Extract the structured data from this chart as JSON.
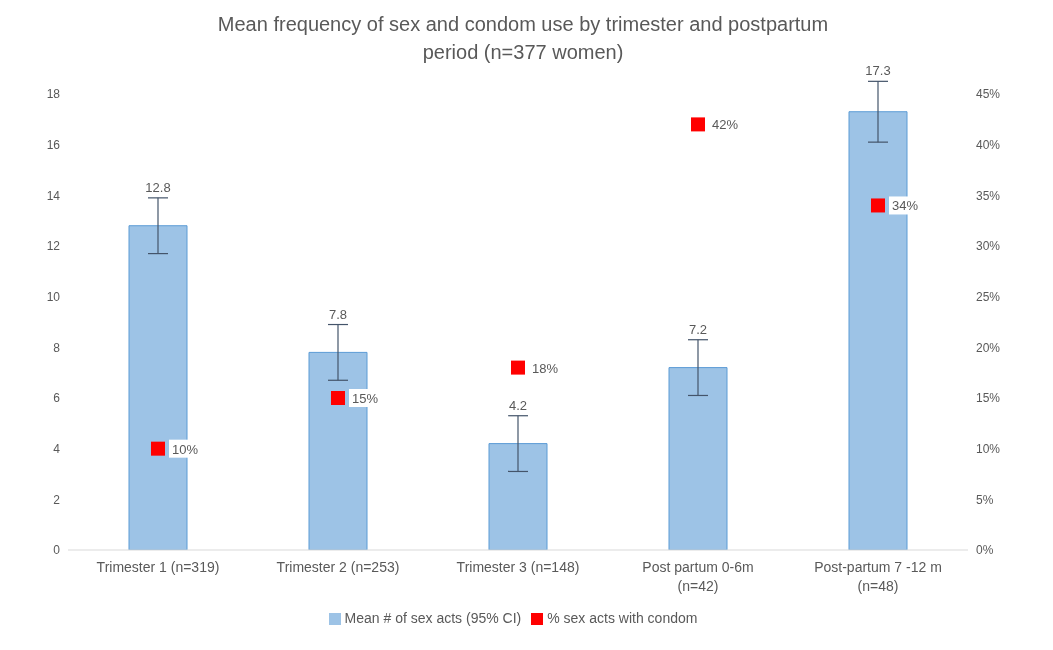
{
  "chart_data": {
    "type": "bar",
    "title": "Mean frequency of sex and condom use by trimester and postpartum period (n=377 women)",
    "categories": [
      "Trimester 1 (n=319)",
      "Trimester 2 (n=253)",
      "Trimester 3 (n=148)",
      "Post partum 0-6m (n=42)",
      "Post-partum 7 -12 m (n=48)"
    ],
    "series": [
      {
        "name": "Mean # of sex acts (95% CI)",
        "color": "#9dc3e6",
        "values": [
          12.8,
          7.8,
          4.2,
          7.2,
          17.3
        ],
        "errors": [
          1.1,
          1.1,
          1.1,
          1.1,
          1.2
        ],
        "value_labels": [
          "12.8",
          "7.8",
          "4.2",
          "7.2",
          "17.3"
        ]
      },
      {
        "name": "% sex acts with condom",
        "type": "scatter",
        "axis": "y2",
        "color": "#ff0000",
        "values": [
          10,
          15,
          18,
          42,
          34
        ],
        "value_labels": [
          "10%",
          "15%",
          "18%",
          "42%",
          "34%"
        ]
      }
    ],
    "ylim": [
      0,
      18
    ],
    "yticks": [
      0,
      2,
      4,
      6,
      8,
      10,
      12,
      14,
      16,
      18
    ],
    "y2lim": [
      0,
      45
    ],
    "y2ticks": [
      {
        "value": 0,
        "label": "0%"
      },
      {
        "value": 5,
        "label": "5%"
      },
      {
        "value": 10,
        "label": "10%"
      },
      {
        "value": 15,
        "label": "15%"
      },
      {
        "value": 20,
        "label": "20%"
      },
      {
        "value": 25,
        "label": "25%"
      },
      {
        "value": 30,
        "label": "30%"
      },
      {
        "value": 35,
        "label": "35%"
      },
      {
        "value": 40,
        "label": "40%"
      },
      {
        "value": 45,
        "label": "45%"
      }
    ],
    "grid": false,
    "legend": "bottom",
    "marker": "square"
  }
}
